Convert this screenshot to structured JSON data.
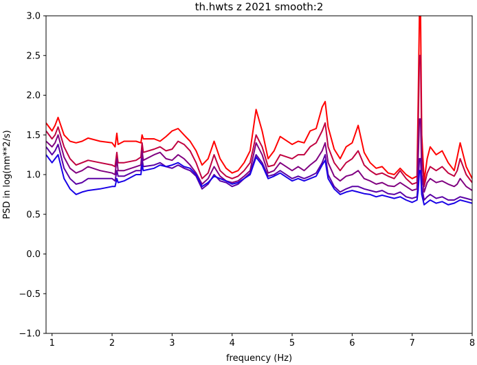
{
  "chart_data": {
    "type": "line",
    "title": "th.hwts z 2021 smooth:2",
    "xlabel": "frequency (Hz)",
    "ylabel": "PSD in log(nm**2/s)",
    "xlim": [
      0.9,
      8.0
    ],
    "ylim": [
      -1.0,
      3.0
    ],
    "xticks": [
      1,
      2,
      3,
      4,
      5,
      6,
      7,
      8
    ],
    "yticks": [
      -1.0,
      -0.5,
      0.0,
      0.5,
      1.0,
      1.5,
      2.0,
      2.5,
      3.0
    ],
    "xtick_labels": [
      "1",
      "2",
      "3",
      "4",
      "5",
      "6",
      "7",
      "8"
    ],
    "ytick_labels": [
      "−1.0",
      "−0.5",
      "0.0",
      "0.5",
      "1.0",
      "1.5",
      "2.0",
      "2.5",
      "3.0"
    ],
    "grid": false,
    "legend": "none",
    "series": [
      {
        "color": "#ff0000",
        "x": [
          0.9,
          1.0,
          1.05,
          1.1,
          1.2,
          1.3,
          1.4,
          1.5,
          1.6,
          1.8,
          2.0,
          2.05,
          2.08,
          2.1,
          2.2,
          2.4,
          2.48,
          2.5,
          2.52,
          2.7,
          2.8,
          2.9,
          3.0,
          3.1,
          3.2,
          3.3,
          3.4,
          3.5,
          3.6,
          3.7,
          3.8,
          3.9,
          4.0,
          4.1,
          4.2,
          4.3,
          4.4,
          4.5,
          4.6,
          4.7,
          4.8,
          5.0,
          5.1,
          5.2,
          5.3,
          5.4,
          5.5,
          5.55,
          5.6,
          5.7,
          5.8,
          5.9,
          6.0,
          6.1,
          6.2,
          6.3,
          6.4,
          6.5,
          6.6,
          6.7,
          6.8,
          6.9,
          7.0,
          7.08,
          7.1,
          7.12,
          7.14,
          7.16,
          7.2,
          7.25,
          7.3,
          7.4,
          7.5,
          7.6,
          7.7,
          7.75,
          7.8,
          7.9,
          8.0
        ],
        "y": [
          1.65,
          1.55,
          1.62,
          1.72,
          1.5,
          1.42,
          1.4,
          1.42,
          1.46,
          1.42,
          1.4,
          1.35,
          1.52,
          1.38,
          1.42,
          1.42,
          1.4,
          1.5,
          1.45,
          1.45,
          1.42,
          1.48,
          1.55,
          1.58,
          1.5,
          1.42,
          1.3,
          1.12,
          1.2,
          1.42,
          1.2,
          1.08,
          1.02,
          1.05,
          1.15,
          1.3,
          1.82,
          1.55,
          1.2,
          1.3,
          1.48,
          1.38,
          1.42,
          1.4,
          1.55,
          1.58,
          1.85,
          1.92,
          1.6,
          1.32,
          1.2,
          1.35,
          1.4,
          1.62,
          1.28,
          1.15,
          1.08,
          1.1,
          1.02,
          1.0,
          1.08,
          1.0,
          0.95,
          0.98,
          1.9,
          3.0,
          3.0,
          1.5,
          0.92,
          1.2,
          1.35,
          1.25,
          1.3,
          1.15,
          1.05,
          1.22,
          1.4,
          1.1,
          0.95
        ]
      },
      {
        "color": "#c0003f",
        "x": [
          0.9,
          1.0,
          1.05,
          1.1,
          1.2,
          1.3,
          1.4,
          1.5,
          1.6,
          1.8,
          2.0,
          2.05,
          2.08,
          2.1,
          2.2,
          2.4,
          2.48,
          2.5,
          2.52,
          2.7,
          2.8,
          2.9,
          3.0,
          3.1,
          3.2,
          3.3,
          3.4,
          3.5,
          3.6,
          3.7,
          3.8,
          3.9,
          4.0,
          4.1,
          4.2,
          4.3,
          4.4,
          4.5,
          4.6,
          4.7,
          4.8,
          5.0,
          5.1,
          5.2,
          5.3,
          5.4,
          5.5,
          5.55,
          5.6,
          5.7,
          5.8,
          5.9,
          6.0,
          6.1,
          6.2,
          6.3,
          6.4,
          6.5,
          6.6,
          6.7,
          6.8,
          6.9,
          7.0,
          7.08,
          7.1,
          7.12,
          7.14,
          7.16,
          7.2,
          7.25,
          7.3,
          7.4,
          7.5,
          7.6,
          7.7,
          7.75,
          7.8,
          7.9,
          8.0
        ],
        "y": [
          1.55,
          1.45,
          1.5,
          1.6,
          1.35,
          1.2,
          1.12,
          1.15,
          1.18,
          1.15,
          1.12,
          1.1,
          1.28,
          1.15,
          1.15,
          1.18,
          1.22,
          1.4,
          1.28,
          1.32,
          1.35,
          1.3,
          1.32,
          1.42,
          1.38,
          1.3,
          1.15,
          0.95,
          1.02,
          1.25,
          1.05,
          0.98,
          0.95,
          0.98,
          1.05,
          1.15,
          1.5,
          1.35,
          1.1,
          1.12,
          1.25,
          1.2,
          1.25,
          1.25,
          1.35,
          1.4,
          1.55,
          1.65,
          1.35,
          1.15,
          1.05,
          1.15,
          1.2,
          1.3,
          1.12,
          1.05,
          1.0,
          1.02,
          0.98,
          0.95,
          1.05,
          0.95,
          0.88,
          0.9,
          1.6,
          2.5,
          2.5,
          1.3,
          0.85,
          1.02,
          1.1,
          1.05,
          1.1,
          1.02,
          0.98,
          1.05,
          1.2,
          1.0,
          0.9
        ]
      },
      {
        "color": "#800080",
        "x": [
          0.9,
          1.0,
          1.05,
          1.1,
          1.2,
          1.3,
          1.4,
          1.5,
          1.6,
          1.8,
          2.0,
          2.05,
          2.08,
          2.1,
          2.2,
          2.4,
          2.48,
          2.5,
          2.52,
          2.7,
          2.8,
          2.9,
          3.0,
          3.1,
          3.2,
          3.3,
          3.4,
          3.5,
          3.6,
          3.7,
          3.8,
          3.9,
          4.0,
          4.1,
          4.2,
          4.3,
          4.4,
          4.5,
          4.6,
          4.7,
          4.8,
          5.0,
          5.1,
          5.2,
          5.3,
          5.4,
          5.5,
          5.55,
          5.6,
          5.7,
          5.8,
          5.9,
          6.0,
          6.1,
          6.2,
          6.3,
          6.4,
          6.5,
          6.6,
          6.7,
          6.8,
          6.9,
          7.0,
          7.08,
          7.1,
          7.12,
          7.14,
          7.16,
          7.2,
          7.25,
          7.3,
          7.4,
          7.5,
          7.6,
          7.7,
          7.75,
          7.8,
          7.9,
          8.0
        ],
        "y": [
          1.42,
          1.35,
          1.4,
          1.5,
          1.22,
          1.08,
          1.02,
          1.05,
          1.1,
          1.05,
          1.02,
          1.0,
          1.2,
          1.05,
          1.05,
          1.1,
          1.12,
          1.3,
          1.18,
          1.25,
          1.28,
          1.2,
          1.18,
          1.25,
          1.2,
          1.12,
          1.02,
          0.88,
          0.95,
          1.1,
          0.98,
          0.92,
          0.9,
          0.92,
          0.98,
          1.05,
          1.4,
          1.25,
          1.02,
          1.05,
          1.15,
          1.05,
          1.1,
          1.05,
          1.12,
          1.18,
          1.3,
          1.4,
          1.15,
          0.98,
          0.92,
          0.98,
          1.0,
          1.05,
          0.95,
          0.92,
          0.88,
          0.9,
          0.86,
          0.85,
          0.9,
          0.85,
          0.8,
          0.82,
          1.2,
          1.7,
          1.7,
          1.0,
          0.78,
          0.9,
          0.95,
          0.9,
          0.92,
          0.88,
          0.85,
          0.88,
          0.95,
          0.85,
          0.8
        ]
      },
      {
        "color": "#5a00a5",
        "x": [
          0.9,
          1.0,
          1.05,
          1.1,
          1.2,
          1.3,
          1.4,
          1.5,
          1.6,
          1.8,
          2.0,
          2.05,
          2.08,
          2.1,
          2.2,
          2.4,
          2.48,
          2.5,
          2.52,
          2.7,
          2.8,
          2.9,
          3.0,
          3.1,
          3.2,
          3.3,
          3.4,
          3.5,
          3.6,
          3.7,
          3.8,
          3.9,
          4.0,
          4.1,
          4.2,
          4.3,
          4.4,
          4.5,
          4.6,
          4.7,
          4.8,
          5.0,
          5.1,
          5.2,
          5.3,
          5.4,
          5.5,
          5.55,
          5.6,
          5.7,
          5.8,
          5.9,
          6.0,
          6.1,
          6.2,
          6.3,
          6.4,
          6.5,
          6.6,
          6.7,
          6.8,
          6.9,
          7.0,
          7.08,
          7.1,
          7.12,
          7.14,
          7.16,
          7.2,
          7.25,
          7.3,
          7.4,
          7.5,
          7.6,
          7.7,
          7.75,
          7.8,
          7.9,
          8.0
        ],
        "y": [
          1.35,
          1.25,
          1.3,
          1.38,
          1.08,
          0.95,
          0.88,
          0.9,
          0.95,
          0.95,
          0.95,
          0.92,
          1.05,
          0.98,
          0.98,
          1.05,
          1.05,
          1.2,
          1.1,
          1.12,
          1.15,
          1.1,
          1.08,
          1.12,
          1.08,
          1.05,
          0.98,
          0.82,
          0.88,
          1.0,
          0.92,
          0.9,
          0.85,
          0.88,
          0.95,
          1.02,
          1.25,
          1.15,
          0.98,
          1.0,
          1.05,
          0.95,
          0.98,
          0.95,
          0.98,
          1.02,
          1.15,
          1.25,
          1.0,
          0.85,
          0.78,
          0.82,
          0.85,
          0.85,
          0.82,
          0.8,
          0.78,
          0.8,
          0.76,
          0.75,
          0.78,
          0.72,
          0.7,
          0.72,
          0.9,
          1.2,
          1.2,
          0.85,
          0.68,
          0.72,
          0.75,
          0.7,
          0.72,
          0.68,
          0.68,
          0.7,
          0.72,
          0.7,
          0.68
        ]
      },
      {
        "color": "#1800e6",
        "x": [
          0.9,
          1.0,
          1.05,
          1.1,
          1.2,
          1.3,
          1.4,
          1.5,
          1.6,
          1.8,
          2.0,
          2.05,
          2.08,
          2.1,
          2.2,
          2.4,
          2.48,
          2.5,
          2.52,
          2.7,
          2.8,
          2.9,
          3.0,
          3.1,
          3.2,
          3.3,
          3.4,
          3.5,
          3.6,
          3.7,
          3.8,
          3.9,
          4.0,
          4.1,
          4.2,
          4.3,
          4.4,
          4.5,
          4.6,
          4.7,
          4.8,
          5.0,
          5.1,
          5.2,
          5.3,
          5.4,
          5.5,
          5.55,
          5.6,
          5.7,
          5.8,
          5.9,
          6.0,
          6.1,
          6.2,
          6.3,
          6.4,
          6.5,
          6.6,
          6.7,
          6.8,
          6.9,
          7.0,
          7.08,
          7.1,
          7.12,
          7.14,
          7.16,
          7.2,
          7.25,
          7.3,
          7.4,
          7.5,
          7.6,
          7.7,
          7.75,
          7.8,
          7.9,
          8.0
        ],
        "y": [
          1.25,
          1.15,
          1.2,
          1.25,
          0.95,
          0.82,
          0.75,
          0.78,
          0.8,
          0.82,
          0.85,
          0.85,
          0.95,
          0.9,
          0.92,
          1.0,
          1.0,
          1.12,
          1.05,
          1.08,
          1.12,
          1.1,
          1.12,
          1.15,
          1.1,
          1.08,
          1.0,
          0.85,
          0.9,
          0.98,
          0.95,
          0.92,
          0.88,
          0.9,
          0.95,
          1.0,
          1.22,
          1.12,
          0.95,
          0.98,
          1.02,
          0.92,
          0.95,
          0.92,
          0.95,
          0.98,
          1.12,
          1.18,
          0.95,
          0.82,
          0.75,
          0.78,
          0.8,
          0.78,
          0.76,
          0.75,
          0.72,
          0.74,
          0.72,
          0.7,
          0.72,
          0.68,
          0.65,
          0.68,
          0.8,
          1.05,
          1.05,
          0.75,
          0.62,
          0.65,
          0.68,
          0.64,
          0.66,
          0.62,
          0.64,
          0.66,
          0.68,
          0.66,
          0.64
        ]
      }
    ]
  }
}
